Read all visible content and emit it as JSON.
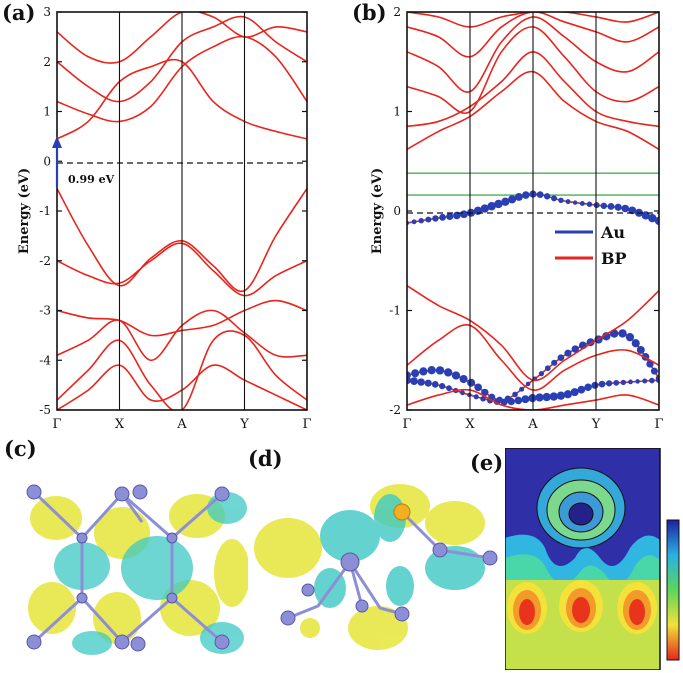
{
  "labels": {
    "a": "(a)",
    "b": "(b)",
    "c": "(c)",
    "d": "(d)",
    "e": "(e)"
  },
  "gap_annotation": "0.99 eV",
  "legend": {
    "au": "Au",
    "bp": "BP"
  },
  "colors": {
    "bp": "#e8241c",
    "au": "#2b3fb4",
    "green": "#4caf50",
    "axis": "#111111"
  },
  "chart_data": [
    {
      "type": "line",
      "panel": "a",
      "ylabel": "Energy (eV)",
      "ylim": [
        -5,
        3
      ],
      "yticks": [
        "-5",
        "-4",
        "-3",
        "-2",
        "-1",
        "0",
        "1",
        "2",
        "3"
      ],
      "xticks": [
        "Γ",
        "X",
        "A",
        "Y",
        "Γ"
      ],
      "fermi_level": 0,
      "gap": 0.99,
      "series": [
        {
          "k": [
            0,
            0.5,
            1,
            1.5,
            2,
            2.5,
            3,
            3.5,
            4
          ],
          "values": [
            0.45,
            0.8,
            1.6,
            1.9,
            2.0,
            1.2,
            0.8,
            0.6,
            0.45
          ]
        },
        {
          "k": [
            0,
            0.5,
            1,
            1.5,
            2,
            2.5,
            3,
            3.5,
            4
          ],
          "values": [
            1.2,
            0.95,
            0.8,
            1.1,
            1.9,
            2.3,
            2.5,
            2.1,
            1.2
          ]
        },
        {
          "k": [
            0,
            0.5,
            1,
            1.5,
            2,
            2.5,
            3,
            3.5,
            4
          ],
          "values": [
            2.0,
            1.5,
            1.2,
            1.6,
            2.4,
            2.7,
            2.9,
            2.4,
            2.0
          ]
        },
        {
          "k": [
            0,
            0.5,
            1,
            1.5,
            2,
            2.5,
            3,
            3.5,
            4
          ],
          "values": [
            2.6,
            2.1,
            2.0,
            2.5,
            3.0,
            2.9,
            2.5,
            2.7,
            2.6
          ]
        },
        {
          "k": [
            0,
            0.5,
            1,
            1.5,
            2,
            2.5,
            3,
            3.5,
            4
          ],
          "values": [
            -0.55,
            -1.7,
            -2.5,
            -1.95,
            -1.6,
            -2.1,
            -2.6,
            -1.5,
            -0.55
          ]
        },
        {
          "k": [
            0,
            0.5,
            1,
            1.5,
            2,
            2.5,
            3,
            3.5,
            4
          ],
          "values": [
            -2.0,
            -2.3,
            -2.45,
            -2.0,
            -1.65,
            -2.2,
            -2.7,
            -2.3,
            -2.0
          ]
        },
        {
          "k": [
            0,
            0.5,
            1,
            1.5,
            2,
            2.5,
            3,
            3.5,
            4
          ],
          "values": [
            -3.0,
            -3.15,
            -3.2,
            -3.5,
            -3.4,
            -3.3,
            -3.0,
            -2.8,
            -3.0
          ]
        },
        {
          "k": [
            0,
            0.5,
            1,
            1.5,
            2,
            2.5,
            3,
            3.5,
            4
          ],
          "values": [
            -3.9,
            -3.6,
            -3.2,
            -4.0,
            -3.3,
            -3.0,
            -3.45,
            -3.9,
            -3.9
          ]
        },
        {
          "k": [
            0,
            0.5,
            1,
            1.5,
            2,
            2.5,
            3,
            3.5,
            4
          ],
          "values": [
            -4.8,
            -4.2,
            -3.6,
            -4.5,
            -5.0,
            -3.6,
            -3.5,
            -4.3,
            -4.8
          ]
        },
        {
          "k": [
            0,
            0.5,
            1,
            1.5,
            2,
            2.5,
            3,
            3.5,
            4
          ],
          "values": [
            -5.0,
            -4.6,
            -4.1,
            -4.8,
            -4.6,
            -4.1,
            -4.4,
            -4.7,
            -5.0
          ]
        }
      ]
    },
    {
      "type": "line",
      "panel": "b",
      "ylabel": "Energy (eV)",
      "ylim": [
        -2,
        2
      ],
      "yticks": [
        "-2",
        "-1",
        "0",
        "1",
        "2"
      ],
      "xticks": [
        "Γ",
        "X",
        "A",
        "Y",
        "Γ"
      ],
      "fermi_level": 0,
      "green_levels": [
        0.38,
        0.16
      ],
      "legend": [
        "Au",
        "BP"
      ],
      "series": [
        {
          "name": "Au",
          "k": [
            0,
            0.5,
            1,
            1.5,
            2,
            2.5,
            3,
            3.5,
            4
          ],
          "values": [
            -0.12,
            -0.07,
            -0.02,
            0.08,
            0.17,
            0.1,
            0.06,
            0.02,
            -0.1
          ]
        },
        {
          "name": "Au",
          "k": [
            0,
            0.5,
            1,
            1.5,
            2,
            2.5,
            3,
            3.5,
            4
          ],
          "values": [
            -1.65,
            -1.6,
            -1.72,
            -1.9,
            -1.7,
            -1.45,
            -1.3,
            -1.25,
            -1.68
          ]
        },
        {
          "name": "Au",
          "k": [
            0,
            0.5,
            1,
            1.5,
            2,
            2.5,
            3,
            3.5,
            4
          ],
          "values": [
            -1.7,
            -1.75,
            -1.85,
            -1.92,
            -1.88,
            -1.85,
            -1.75,
            -1.72,
            -1.7
          ]
        },
        {
          "k": [
            0,
            0.5,
            1,
            1.5,
            2,
            2.5,
            3,
            3.5,
            4
          ],
          "values": [
            0.62,
            0.8,
            0.95,
            1.2,
            1.4,
            1.1,
            0.9,
            0.8,
            0.62
          ]
        },
        {
          "k": [
            0,
            0.5,
            1,
            1.5,
            2,
            2.5,
            3,
            3.5,
            4
          ],
          "values": [
            0.85,
            0.9,
            1.05,
            1.3,
            1.6,
            1.3,
            1.0,
            0.9,
            0.85
          ]
        },
        {
          "k": [
            0,
            0.5,
            1,
            1.5,
            2,
            2.5,
            3,
            3.5,
            4
          ],
          "values": [
            1.25,
            1.15,
            1.0,
            1.6,
            1.85,
            1.55,
            1.2,
            1.1,
            1.25
          ]
        },
        {
          "k": [
            0,
            0.5,
            1,
            1.5,
            2,
            2.5,
            3,
            3.5,
            4
          ],
          "values": [
            1.6,
            1.45,
            1.2,
            1.7,
            1.95,
            1.75,
            1.5,
            1.4,
            1.6
          ]
        },
        {
          "k": [
            0,
            0.5,
            1,
            1.5,
            2,
            2.5,
            3,
            3.5,
            4
          ],
          "values": [
            1.85,
            1.75,
            1.55,
            1.85,
            2.0,
            1.9,
            1.8,
            1.7,
            1.85
          ]
        },
        {
          "k": [
            0,
            0.5,
            1,
            1.5,
            2,
            2.5,
            3,
            3.5,
            4
          ],
          "values": [
            2.0,
            1.95,
            1.85,
            1.95,
            2.0,
            2.0,
            1.95,
            1.9,
            2.0
          ]
        },
        {
          "k": [
            0,
            0.5,
            1,
            1.5,
            2,
            2.5,
            3,
            3.5,
            4
          ],
          "values": [
            -0.75,
            -0.95,
            -1.1,
            -1.35,
            -1.7,
            -1.5,
            -1.3,
            -1.1,
            -0.8
          ]
        },
        {
          "k": [
            0,
            0.5,
            1,
            1.5,
            2,
            2.5,
            3,
            3.5,
            4
          ],
          "values": [
            -1.55,
            -1.3,
            -1.15,
            -1.5,
            -1.8,
            -1.6,
            -1.45,
            -1.4,
            -1.55
          ]
        },
        {
          "k": [
            0,
            0.5,
            1,
            1.5,
            2,
            2.5,
            3,
            3.5,
            4
          ],
          "values": [
            -1.95,
            -1.85,
            -1.8,
            -1.95,
            -2.0,
            -1.95,
            -1.9,
            -1.85,
            -1.95
          ]
        }
      ]
    }
  ]
}
